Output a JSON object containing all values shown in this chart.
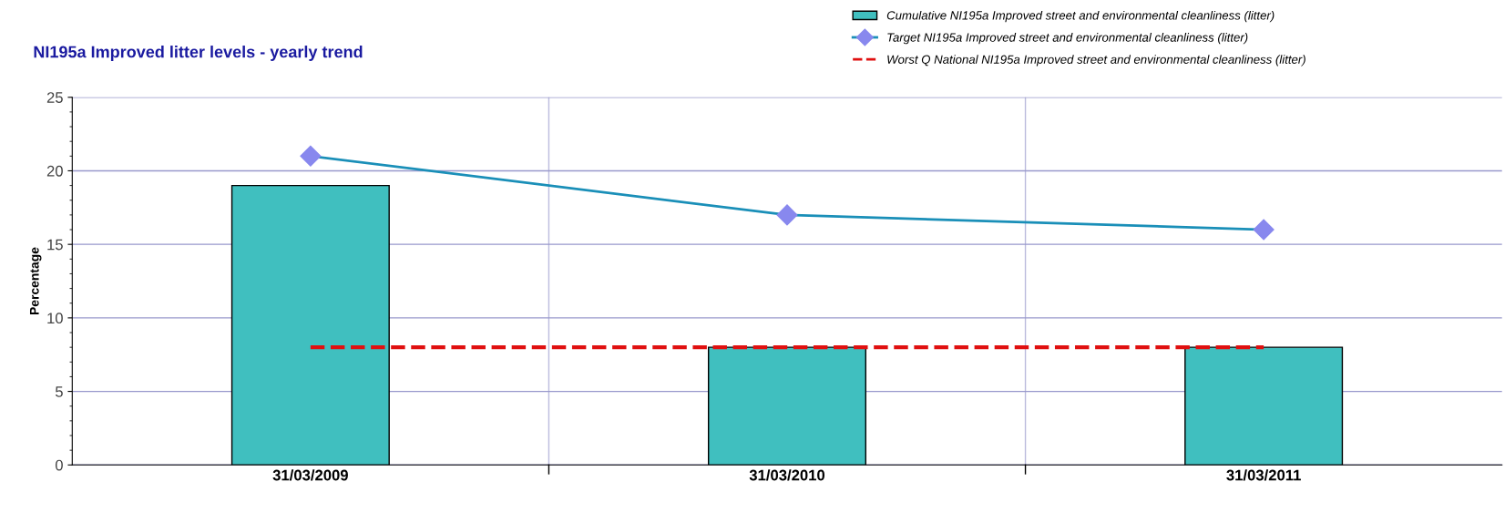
{
  "chart_data": {
    "type": "bar",
    "title": "NI195a Improved litter levels - yearly trend",
    "ylabel": "Percentage",
    "categories": [
      "31/03/2009",
      "31/03/2010",
      "31/03/2011"
    ],
    "series": [
      {
        "name": "Cumulative NI195a Improved street and environmental cleanliness (litter)",
        "color": "#40bfbf",
        "values": [
          19,
          8,
          8
        ]
      },
      {
        "name": "Target NI195a Improved street and environmental cleanliness (litter)",
        "type": "line",
        "color": "#1a8fb8",
        "marker": "diamond",
        "values": [
          21,
          17,
          16
        ]
      },
      {
        "name": "Worst Q National NI195a Improved street and environmental cleanliness (litter)",
        "type": "line",
        "color": "#e01010",
        "line_style": "dashed",
        "values": [
          8,
          8,
          8
        ]
      }
    ],
    "ylim": [
      0,
      25
    ],
    "yticks": [
      0,
      5,
      10,
      15,
      20,
      25
    ],
    "grid": true,
    "legend": "top right"
  }
}
